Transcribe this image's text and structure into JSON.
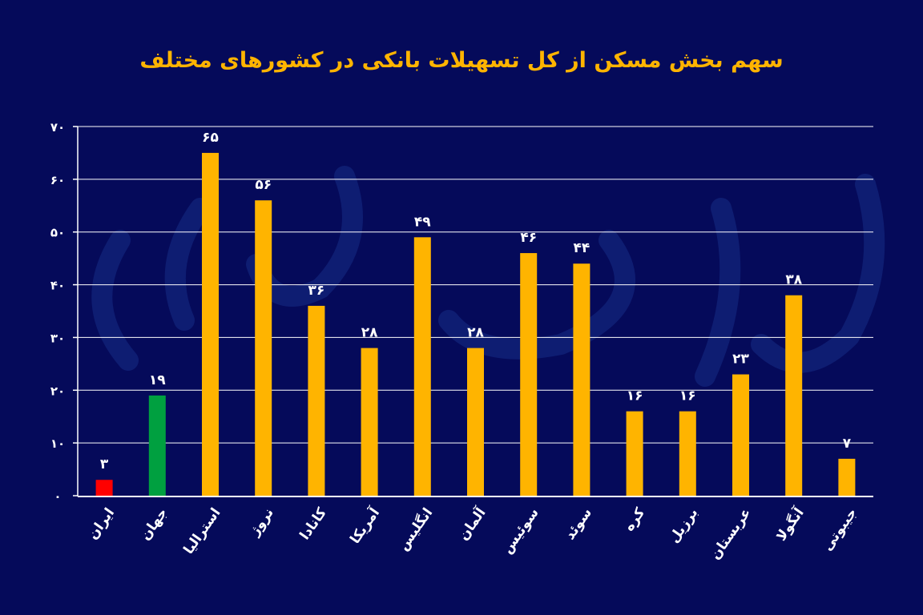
{
  "chart_data": {
    "type": "bar",
    "title": "سهم بخش مسکن از کل تسهیلات بانکی در کشورهای مختلف",
    "xlabel": "",
    "ylabel": "",
    "ylim": [
      0,
      70
    ],
    "yticks": [
      0,
      10,
      20,
      30,
      40,
      50,
      60,
      70
    ],
    "ytick_labels": [
      "۰",
      "۱۰",
      "۲۰",
      "۳۰",
      "۴۰",
      "۵۰",
      "۶۰",
      "۷۰"
    ],
    "grid": true,
    "categories": [
      "ایران",
      "جهان",
      "استرالیا",
      "نروژ",
      "کانادا",
      "آمریکا",
      "انگلیس",
      "آلمان",
      "سوئیس",
      "سوئد",
      "کره",
      "برزیل",
      "عربستان",
      "آنگولا",
      "جیبوتی"
    ],
    "values": [
      3,
      19,
      65,
      56,
      36,
      28,
      49,
      28,
      46,
      44,
      16,
      16,
      23,
      38,
      7
    ],
    "data_labels": [
      "۳",
      "۱۹",
      "۶۵",
      "۵۶",
      "۳۶",
      "۲۸",
      "۴۹",
      "۲۸",
      "۴۶",
      "۴۴",
      "۱۶",
      "۱۶",
      "۲۳",
      "۳۸",
      "۷"
    ],
    "bar_colors": [
      "#ff0000",
      "#00a040",
      "#ffb400",
      "#ffb400",
      "#ffb400",
      "#ffb400",
      "#ffb400",
      "#ffb400",
      "#ffb400",
      "#ffb400",
      "#ffb400",
      "#ffb400",
      "#ffb400",
      "#ffb400",
      "#ffb400"
    ]
  },
  "colors": {
    "background": "#050a5a",
    "title": "#ffb400",
    "bar": "#ffb400",
    "grid": "#ffffff"
  },
  "watermark": "دنیای اقتصاد"
}
